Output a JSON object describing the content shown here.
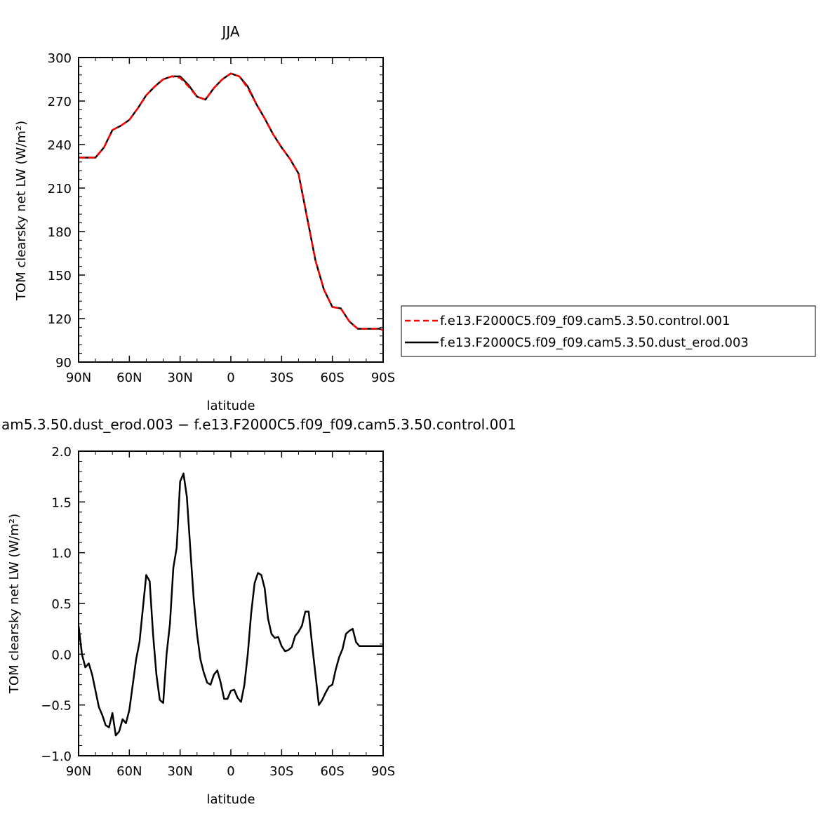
{
  "chart_data": [
    {
      "type": "line",
      "title": "JJA",
      "xlabel": "latitude",
      "ylabel": "TOM clearsky net LW (W/m²)",
      "xlim": [
        90,
        -90
      ],
      "ylim": [
        90,
        300
      ],
      "yticks": [
        90,
        120,
        150,
        180,
        210,
        240,
        270,
        300
      ],
      "xticks": [
        90,
        60,
        30,
        0,
        -30,
        -60,
        -90
      ],
      "xtick_labels": [
        "90N",
        "60N",
        "30N",
        "0",
        "30S",
        "60S",
        "90S"
      ],
      "legend_position": "right",
      "series": [
        {
          "name": "f.e13.F2000C5.f09_f09.cam5.3.50.control.001",
          "color": "#ff0000",
          "dash": "dashed",
          "x": [
            90,
            85,
            80,
            75,
            70,
            65,
            60,
            55,
            50,
            45,
            40,
            35,
            30,
            25,
            20,
            15,
            10,
            5,
            0,
            -5,
            -10,
            -15,
            -20,
            -25,
            -30,
            -35,
            -40,
            -45,
            -50,
            -55,
            -60,
            -65,
            -70,
            -75,
            -80,
            -85,
            -88,
            -90
          ],
          "y": [
            231,
            231,
            231,
            238,
            250,
            253,
            257,
            265,
            274,
            280,
            285,
            287,
            286,
            280,
            273,
            271,
            279,
            285,
            289,
            287,
            279,
            268,
            258,
            247,
            238,
            230,
            220,
            190,
            160,
            140,
            128,
            127,
            118,
            113,
            113,
            113,
            113,
            112
          ]
        },
        {
          "name": "f.e13.F2000C5.f09_f09.cam5.3.50.dust_erod.003",
          "color": "#000000",
          "dash": "solid",
          "x": [
            90,
            85,
            80,
            75,
            70,
            65,
            60,
            55,
            50,
            45,
            40,
            35,
            30,
            25,
            20,
            15,
            10,
            5,
            0,
            -5,
            -10,
            -15,
            -20,
            -25,
            -30,
            -35,
            -40,
            -45,
            -50,
            -55,
            -60,
            -65,
            -70,
            -75,
            -80,
            -85,
            -88,
            -90
          ],
          "y": [
            231,
            231,
            231,
            238,
            250,
            253,
            257,
            265,
            274,
            280,
            285,
            287,
            287,
            281,
            273,
            271,
            279,
            285,
            289,
            287,
            280,
            268,
            258,
            247,
            238,
            230,
            220,
            190,
            160,
            140,
            128,
            127,
            118,
            113,
            113,
            113,
            113,
            112
          ]
        }
      ]
    },
    {
      "type": "line",
      "title": "am5.3.50.dust_erod.003 − f.e13.F2000C5.f09_f09.cam5.3.50.control.001",
      "xlabel": "latitude",
      "ylabel": "TOM clearsky net LW (W/m²)",
      "xlim": [
        90,
        -90
      ],
      "ylim": [
        -1.0,
        2.0
      ],
      "yticks": [
        -1.0,
        -0.5,
        0.0,
        0.5,
        1.0,
        1.5,
        2.0
      ],
      "ytick_labels": [
        "−1.0",
        "−0.5",
        "0.0",
        "0.5",
        "1.0",
        "1.5",
        "2.0"
      ],
      "xticks": [
        90,
        60,
        30,
        0,
        -30,
        -60,
        -90
      ],
      "xtick_labels": [
        "90N",
        "60N",
        "30N",
        "0",
        "30S",
        "60S",
        "90S"
      ],
      "series": [
        {
          "color": "#000000",
          "x": [
            90,
            88,
            86,
            84,
            82,
            80,
            78,
            76,
            74,
            72,
            70,
            68,
            66,
            64,
            62,
            60,
            58,
            56,
            54,
            52,
            50,
            48,
            46,
            44,
            42,
            40,
            38,
            36,
            34,
            32,
            30,
            28,
            26,
            24,
            22,
            20,
            18,
            16,
            14,
            12,
            10,
            8,
            6,
            4,
            2,
            0,
            -2,
            -4,
            -6,
            -8,
            -10,
            -12,
            -14,
            -16,
            -18,
            -20,
            -22,
            -24,
            -26,
            -28,
            -30,
            -32,
            -34,
            -36,
            -38,
            -40,
            -42,
            -44,
            -46,
            -48,
            -50,
            -52,
            -54,
            -56,
            -58,
            -60,
            -62,
            -64,
            -66,
            -68,
            -70,
            -72,
            -74,
            -76,
            -78,
            -80,
            -82,
            -84,
            -86,
            -88,
            -90
          ],
          "y": [
            0.28,
            0.0,
            -0.13,
            -0.09,
            -0.2,
            -0.36,
            -0.52,
            -0.6,
            -0.7,
            -0.72,
            -0.58,
            -0.8,
            -0.76,
            -0.64,
            -0.68,
            -0.55,
            -0.3,
            -0.05,
            0.12,
            0.45,
            0.78,
            0.72,
            0.2,
            -0.2,
            -0.45,
            -0.48,
            0.0,
            0.3,
            0.85,
            1.05,
            1.7,
            1.78,
            1.55,
            1.05,
            0.55,
            0.2,
            -0.05,
            -0.18,
            -0.28,
            -0.3,
            -0.2,
            -0.16,
            -0.28,
            -0.44,
            -0.44,
            -0.36,
            -0.35,
            -0.43,
            -0.47,
            -0.3,
            0.0,
            0.4,
            0.7,
            0.8,
            0.78,
            0.65,
            0.35,
            0.2,
            0.16,
            0.17,
            0.08,
            0.03,
            0.04,
            0.07,
            0.18,
            0.22,
            0.28,
            0.42,
            0.42,
            0.1,
            -0.2,
            -0.5,
            -0.45,
            -0.38,
            -0.32,
            -0.3,
            -0.15,
            -0.03,
            0.05,
            0.2,
            0.23,
            0.25,
            0.12,
            0.08,
            0.08,
            0.08,
            0.08,
            0.08,
            0.08,
            0.08,
            0.08
          ]
        }
      ]
    }
  ]
}
